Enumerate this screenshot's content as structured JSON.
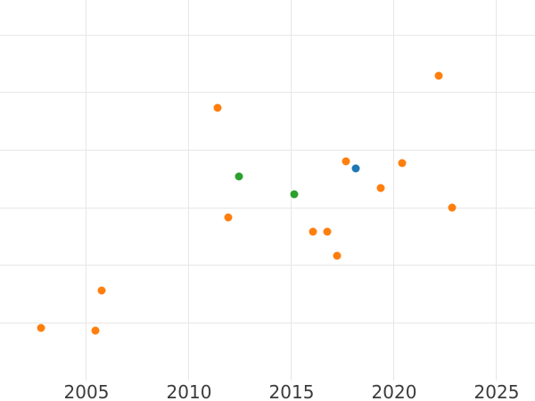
{
  "figure": {
    "background_color": "#ffffff",
    "grid_color": "#e7e7e7",
    "tick_label_color": "#3b3b3b",
    "x_tick_labels": [
      "2005",
      "2010",
      "2015",
      "2020",
      "2025"
    ]
  },
  "chart_data": {
    "type": "scatter",
    "title": "",
    "subtitle": "",
    "xlabel": "",
    "ylabel": "",
    "legend": "none",
    "grid": true,
    "x_ticks": [
      2005,
      2010,
      2015,
      2020,
      2025
    ],
    "xlim": [
      2000.783,
      2026.87
    ],
    "ylim": [
      0,
      6.608
    ],
    "y_gridline_values": [
      1,
      2,
      3,
      4,
      5,
      6
    ],
    "y_tick_labels_visible": false,
    "y_unit": "gridline-intervals",
    "marker_size_px": 9,
    "series": [
      {
        "name": "orange-series",
        "color": "#ff7f0e",
        "points": [
          {
            "x": 2002.78,
            "y": 0.91
          },
          {
            "x": 2005.43,
            "y": 0.86
          },
          {
            "x": 2005.76,
            "y": 1.57
          },
          {
            "x": 2011.39,
            "y": 4.74
          },
          {
            "x": 2011.91,
            "y": 2.83
          },
          {
            "x": 2016.04,
            "y": 2.59
          },
          {
            "x": 2016.74,
            "y": 2.58
          },
          {
            "x": 2017.22,
            "y": 2.16
          },
          {
            "x": 2017.65,
            "y": 3.81
          },
          {
            "x": 2019.35,
            "y": 3.34
          },
          {
            "x": 2020.39,
            "y": 3.78
          },
          {
            "x": 2022.17,
            "y": 5.3
          },
          {
            "x": 2022.83,
            "y": 3.0
          }
        ]
      },
      {
        "name": "green-series",
        "color": "#2ca02c",
        "points": [
          {
            "x": 2012.43,
            "y": 3.55
          },
          {
            "x": 2015.13,
            "y": 3.24
          }
        ]
      },
      {
        "name": "blue-series",
        "color": "#1f77b4",
        "points": [
          {
            "x": 2018.13,
            "y": 3.69
          }
        ]
      }
    ]
  }
}
